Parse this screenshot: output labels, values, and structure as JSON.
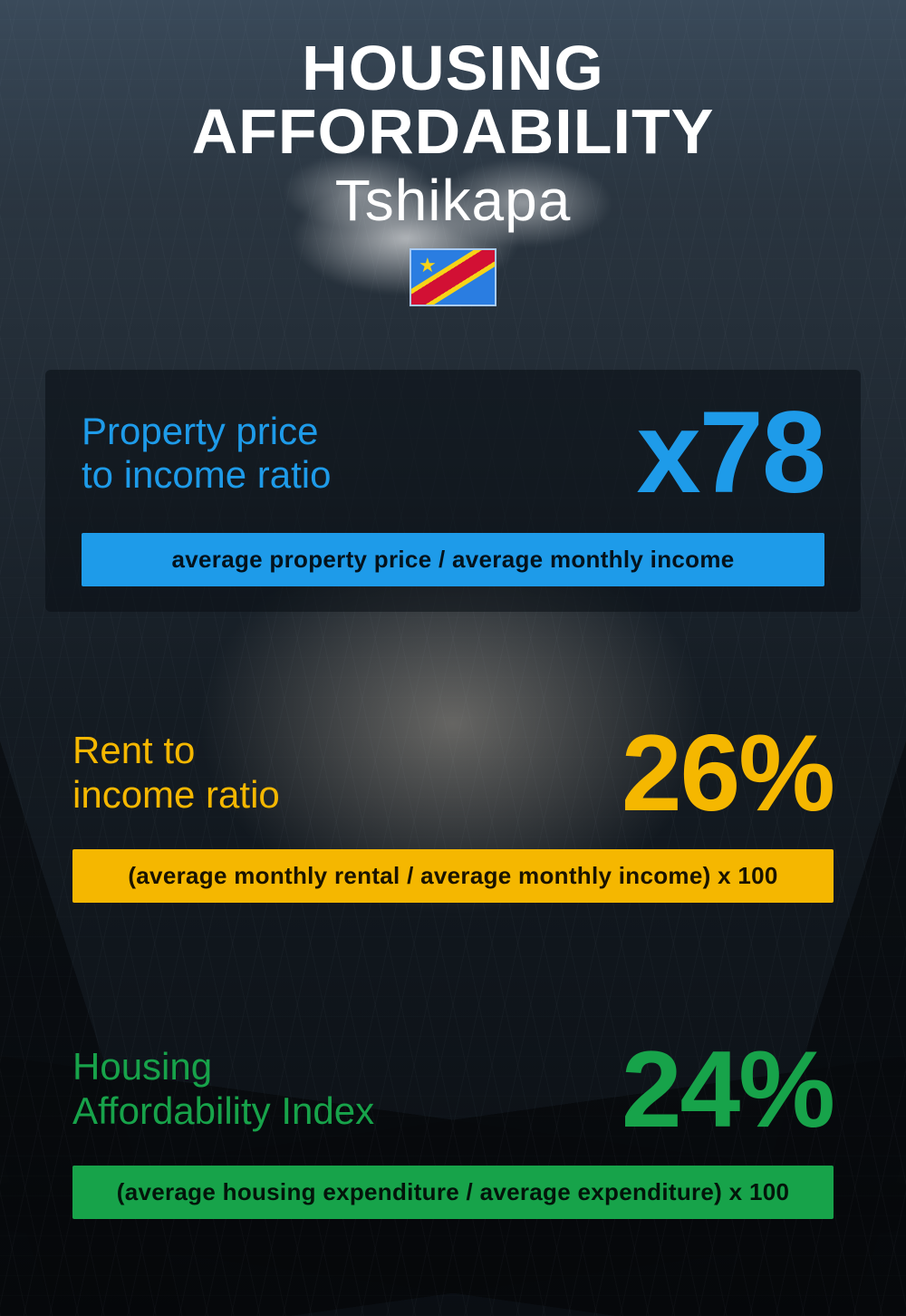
{
  "header": {
    "title": "HOUSING AFFORDABILITY",
    "subtitle": "Tshikapa",
    "flag": {
      "name": "flag-drc",
      "field_color": "#2a7de1",
      "stripe_red": "#d21034",
      "stripe_yellow": "#f7d417",
      "star_color": "#f7d417"
    }
  },
  "metrics": [
    {
      "key": "price_to_income",
      "label": "Property price\nto income ratio",
      "value": "x78",
      "formula": "average property price / average monthly income",
      "color": "#1e9be9",
      "value_fontsize": 128,
      "label_fontsize": 42,
      "formula_fontsize": 26,
      "card_background": "rgba(10,15,20,0.55)"
    },
    {
      "key": "rent_to_income",
      "label": "Rent to\nincome ratio",
      "value": "26%",
      "formula": "(average monthly rental / average monthly income) x 100",
      "color": "#f5b700",
      "value_fontsize": 120,
      "label_fontsize": 42,
      "formula_fontsize": 26,
      "card_background": "transparent"
    },
    {
      "key": "affordability_index",
      "label": "Housing\nAffordability Index",
      "value": "24%",
      "formula": "(average housing expenditure / average expenditure) x 100",
      "color": "#17a34a",
      "value_fontsize": 120,
      "label_fontsize": 42,
      "formula_fontsize": 26,
      "card_background": "transparent"
    }
  ],
  "background": {
    "top_sky": "#3a4a5a",
    "mid": "#141b22",
    "bottom": "#0a0e13",
    "glow": "rgba(255,240,220,0.35)"
  }
}
